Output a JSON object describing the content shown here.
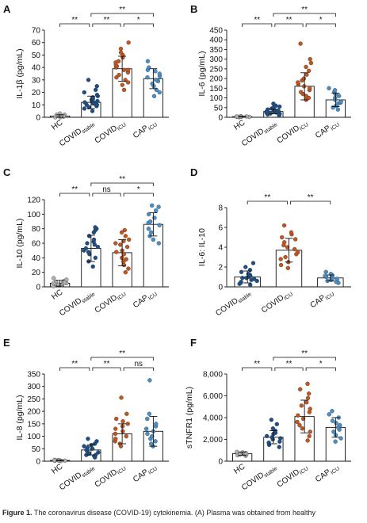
{
  "figure": {
    "caption_label": "Figure 1.",
    "caption_text": " The coronavirus disease (COVID-19) cytokinemia. (A) Plasma was obtained from healthy"
  },
  "groups": {
    "HC": {
      "base": "HC",
      "sub": "",
      "color": "#b0b0b0"
    },
    "COVIDstable": {
      "base": "COVID",
      "sub": "stable",
      "color": "#1d4f86"
    },
    "COVIDICU": {
      "base": "COVID",
      "sub": "ICU",
      "color": "#c2561f"
    },
    "CAPICU": {
      "base": "CAP",
      "sub": "ICU",
      "color": "#4a90c8"
    }
  },
  "chart_data": [
    {
      "panel": "A",
      "type": "scatter",
      "title": "",
      "ylabel": "IL-1β (pg/mL)",
      "ylim": [
        0,
        70
      ],
      "yticks": [
        0,
        10,
        20,
        30,
        40,
        50,
        60,
        70
      ],
      "categories": [
        "HC",
        "COVIDstable",
        "COVIDICU",
        "CAPICU"
      ],
      "means": [
        1,
        12,
        39,
        31
      ],
      "sd": [
        1,
        5,
        10,
        8
      ],
      "points": [
        [
          0,
          0.5,
          1,
          1,
          2,
          2,
          1,
          3,
          0,
          1
        ],
        [
          5,
          7,
          8,
          9,
          10,
          10,
          11,
          11,
          12,
          12,
          13,
          13,
          14,
          15,
          16,
          17,
          18,
          20,
          22,
          25,
          30
        ],
        [
          22,
          26,
          28,
          30,
          32,
          34,
          36,
          38,
          38,
          40,
          41,
          42,
          44,
          45,
          48,
          50,
          52,
          55,
          60
        ],
        [
          17,
          20,
          22,
          25,
          27,
          29,
          30,
          32,
          33,
          35,
          37,
          38,
          40,
          45
        ]
      ],
      "brackets": [
        {
          "from": 0,
          "to": 1,
          "label": "**",
          "level": 0
        },
        {
          "from": 1,
          "to": 2,
          "label": "**",
          "level": 0
        },
        {
          "from": 2,
          "to": 3,
          "label": "*",
          "level": 0
        },
        {
          "from": 1,
          "to": 3,
          "label": "**",
          "level": 1
        }
      ]
    },
    {
      "panel": "B",
      "type": "scatter",
      "title": "",
      "ylabel": "IL-6 (pg/mL)",
      "ylim": [
        0,
        450
      ],
      "yticks": [
        0,
        50,
        100,
        150,
        200,
        250,
        300,
        350,
        400,
        450
      ],
      "categories": [
        "HC",
        "COVIDstable",
        "COVIDICU",
        "CAPICU"
      ],
      "means": [
        3,
        30,
        160,
        90
      ],
      "sd": [
        2,
        12,
        70,
        35
      ],
      "points": [
        [
          1,
          2,
          3,
          3,
          4,
          5,
          2,
          4,
          3
        ],
        [
          10,
          15,
          18,
          20,
          22,
          25,
          28,
          30,
          32,
          35,
          38,
          40,
          45,
          50,
          55,
          60,
          70,
          20,
          25
        ],
        [
          90,
          100,
          110,
          120,
          130,
          140,
          150,
          160,
          170,
          180,
          190,
          200,
          220,
          240,
          260,
          280,
          300,
          380
        ],
        [
          40,
          50,
          60,
          70,
          75,
          80,
          90,
          100,
          110,
          120,
          130,
          140,
          150
        ]
      ],
      "brackets": [
        {
          "from": 0,
          "to": 1,
          "label": "**",
          "level": 0
        },
        {
          "from": 1,
          "to": 2,
          "label": "**",
          "level": 0
        },
        {
          "from": 2,
          "to": 3,
          "label": "*",
          "level": 0
        },
        {
          "from": 1,
          "to": 3,
          "label": "**",
          "level": 1
        }
      ]
    },
    {
      "panel": "C",
      "type": "scatter",
      "title": "",
      "ylabel": "IL-10 (pg/mL)",
      "ylim": [
        0,
        120
      ],
      "yticks": [
        0,
        20,
        40,
        60,
        80,
        100,
        120
      ],
      "categories": [
        "HC",
        "COVIDstable",
        "COVIDICU",
        "CAPICU"
      ],
      "means": [
        5,
        53,
        47,
        86
      ],
      "sd": [
        4,
        18,
        18,
        16
      ],
      "points": [
        [
          1,
          2,
          3,
          4,
          5,
          6,
          7,
          8,
          10,
          12,
          3,
          5,
          6
        ],
        [
          28,
          35,
          40,
          45,
          48,
          50,
          53,
          55,
          58,
          60,
          62,
          65,
          70,
          75,
          78,
          80,
          82
        ],
        [
          20,
          25,
          30,
          35,
          38,
          40,
          45,
          48,
          50,
          55,
          58,
          60,
          63,
          65,
          70,
          75,
          78
        ],
        [
          60,
          65,
          70,
          75,
          80,
          85,
          88,
          90,
          95,
          100,
          105,
          110,
          112
        ]
      ],
      "brackets": [
        {
          "from": 0,
          "to": 1,
          "label": "**",
          "level": 0
        },
        {
          "from": 1,
          "to": 2,
          "label": "ns",
          "level": 0
        },
        {
          "from": 2,
          "to": 3,
          "label": "*",
          "level": 0
        },
        {
          "from": 1,
          "to": 3,
          "label": "**",
          "level": 1
        }
      ]
    },
    {
      "panel": "D",
      "type": "scatter",
      "title": "",
      "ylabel": "IL-6: IL-10",
      "ylim": [
        0,
        8
      ],
      "yticks": [
        0,
        2,
        4,
        6,
        8
      ],
      "categories": [
        "COVIDstable",
        "COVIDICU",
        "CAPICU"
      ],
      "means": [
        1.0,
        3.7,
        0.9
      ],
      "sd": [
        0.6,
        1.2,
        0.3
      ],
      "points": [
        [
          0.2,
          0.4,
          0.5,
          0.6,
          0.7,
          0.8,
          0.9,
          1.0,
          1.1,
          1.2,
          1.3,
          1.5,
          1.7,
          2.0,
          2.4,
          0.3,
          0.9
        ],
        [
          1.9,
          2.2,
          2.5,
          2.8,
          3.0,
          3.3,
          3.5,
          3.8,
          4.0,
          4.2,
          4.5,
          4.8,
          5.0,
          5.3,
          5.5,
          6.2
        ],
        [
          0.4,
          0.5,
          0.6,
          0.7,
          0.8,
          0.9,
          1.0,
          1.1,
          1.2,
          1.3,
          1.5
        ]
      ],
      "brackets": [
        {
          "from": 0,
          "to": 1,
          "label": "**",
          "level": 0
        },
        {
          "from": 1,
          "to": 2,
          "label": "**",
          "level": 0
        }
      ]
    },
    {
      "panel": "E",
      "type": "scatter",
      "title": "",
      "ylabel": "IL-8 (pg/mL)",
      "ylim": [
        0,
        350
      ],
      "yticks": [
        0,
        50,
        100,
        150,
        200,
        250,
        300,
        350
      ],
      "categories": [
        "HC",
        "COVIDstable",
        "COVIDICU",
        "CAPICU"
      ],
      "means": [
        3,
        45,
        110,
        120
      ],
      "sd": [
        2,
        20,
        40,
        60
      ],
      "points": [
        [
          1,
          2,
          3,
          4,
          5,
          2,
          3,
          4
        ],
        [
          15,
          20,
          25,
          30,
          35,
          40,
          45,
          50,
          55,
          60,
          65,
          70,
          80,
          90,
          25
        ],
        [
          60,
          70,
          80,
          90,
          100,
          110,
          120,
          130,
          140,
          150,
          160,
          170,
          190,
          255
        ],
        [
          60,
          70,
          80,
          90,
          100,
          110,
          120,
          130,
          140,
          150,
          170,
          190,
          325
        ]
      ],
      "brackets": [
        {
          "from": 0,
          "to": 1,
          "label": "**",
          "level": 0
        },
        {
          "from": 1,
          "to": 2,
          "label": "**",
          "level": 0
        },
        {
          "from": 2,
          "to": 3,
          "label": "ns",
          "level": 0
        },
        {
          "from": 1,
          "to": 3,
          "label": "**",
          "level": 1
        }
      ]
    },
    {
      "panel": "F",
      "type": "scatter",
      "title": "",
      "ylabel": "sTNFR1 (pg/mL)",
      "ylim": [
        0,
        8000
      ],
      "yticks": [
        0,
        2000,
        4000,
        6000,
        8000
      ],
      "yticklabels": [
        "0",
        "2,000",
        "4,000",
        "6,000",
        "8,000"
      ],
      "categories": [
        "HC",
        "COVIDstable",
        "COVIDICU",
        "CAPICU"
      ],
      "means": [
        700,
        2200,
        4100,
        3100
      ],
      "sd": [
        150,
        600,
        1500,
        900
      ],
      "points": [
        [
          500,
          550,
          600,
          650,
          700,
          750,
          800,
          850,
          600
        ],
        [
          1300,
          1500,
          1700,
          1800,
          2000,
          2100,
          2200,
          2300,
          2500,
          2600,
          2800,
          3000,
          3400,
          3800
        ],
        [
          1900,
          2300,
          2700,
          3000,
          3300,
          3600,
          3900,
          4200,
          4500,
          4800,
          5100,
          5400,
          5800,
          6200,
          6600,
          7100
        ],
        [
          1800,
          2100,
          2400,
          2700,
          2900,
          3100,
          3300,
          3500,
          3700,
          4000,
          4300,
          4600
        ]
      ],
      "brackets": [
        {
          "from": 0,
          "to": 1,
          "label": "**",
          "level": 0
        },
        {
          "from": 1,
          "to": 2,
          "label": "**",
          "level": 0
        },
        {
          "from": 2,
          "to": 3,
          "label": "*",
          "level": 0
        },
        {
          "from": 1,
          "to": 3,
          "label": "**",
          "level": 1
        }
      ]
    }
  ]
}
